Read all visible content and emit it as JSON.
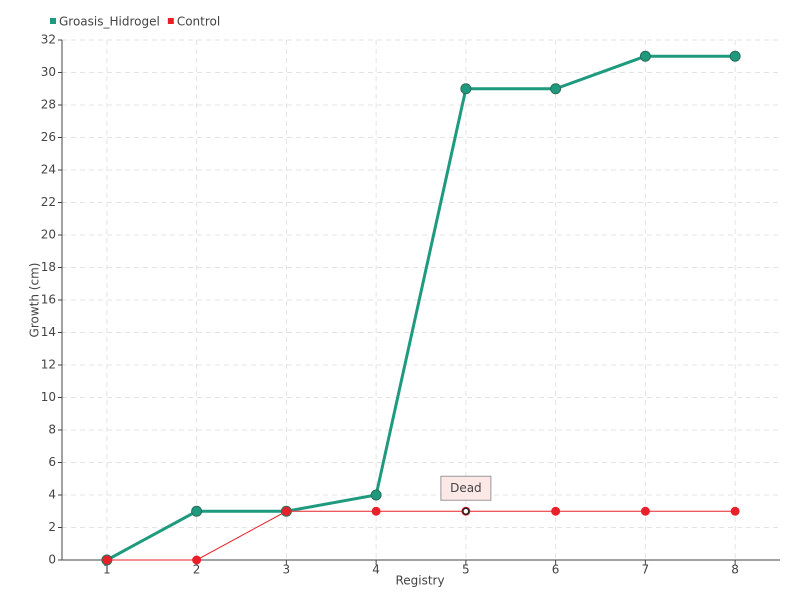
{
  "chart_data": {
    "type": "line",
    "x_label": "Registry",
    "y_label": "Growth (cm)",
    "categories": [
      "1",
      "2",
      "3",
      "4",
      "5",
      "6",
      "7",
      "8"
    ],
    "series": [
      {
        "name": "Groasis_Hidrogel",
        "color": "#1e9a7e",
        "values": [
          0,
          3,
          3,
          4,
          29,
          29,
          31,
          31
        ]
      },
      {
        "name": "Control",
        "color": "#e8202a",
        "values": [
          0,
          0,
          3,
          3,
          3,
          3,
          3,
          3
        ]
      }
    ],
    "ylim": [
      0,
      32
    ],
    "yticks": [
      0,
      2,
      4,
      6,
      8,
      10,
      12,
      14,
      16,
      18,
      20,
      22,
      24,
      26,
      28,
      30,
      32
    ],
    "grid": true,
    "legend": "top-left",
    "annotation": {
      "text": "Dead",
      "category": "5",
      "series": "Control"
    }
  }
}
